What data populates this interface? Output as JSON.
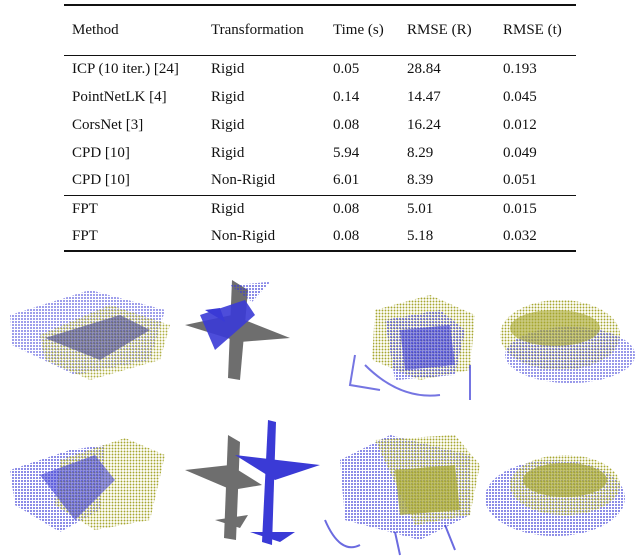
{
  "table": {
    "headers": [
      "Method",
      "Transformation",
      "Time (s)",
      "RMSE (R)",
      "RMSE (t)"
    ],
    "rows": [
      [
        "ICP (10 iter.) [24]",
        "Rigid",
        "0.05",
        "28.84",
        "0.193"
      ],
      [
        "PointNetLK [4]",
        "Rigid",
        "0.14",
        "14.47",
        "0.045"
      ],
      [
        "CorsNet [3]",
        "Rigid",
        "0.08",
        "16.24",
        "0.012"
      ],
      [
        "CPD [10]",
        "Rigid",
        "5.94",
        "8.29",
        "0.049"
      ],
      [
        "CPD [10]",
        "Non-Rigid",
        "6.01",
        "8.39",
        "0.051"
      ],
      [
        "FPT",
        "Rigid",
        "0.08",
        "5.01",
        "0.015"
      ],
      [
        "FPT",
        "Non-Rigid",
        "0.08",
        "5.18",
        "0.032"
      ]
    ]
  },
  "figure": {
    "colors": {
      "source": "#3a3ad6",
      "target": "#a6a62e",
      "plane_body": "#6e6e6e"
    },
    "panels": [
      "box",
      "airplane",
      "chair",
      "bathtub",
      "box",
      "airplane",
      "chair",
      "bathtub"
    ]
  }
}
